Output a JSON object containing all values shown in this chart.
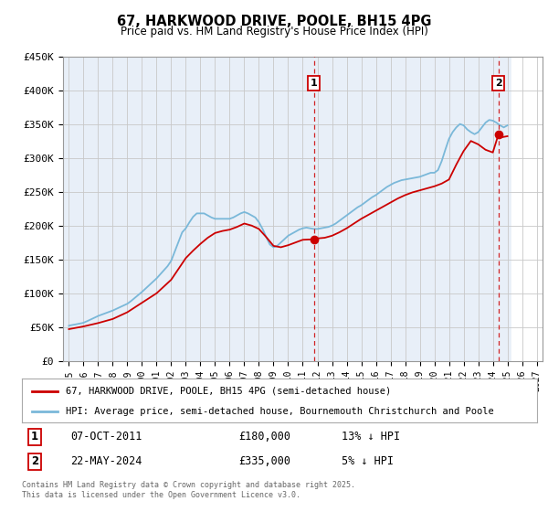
{
  "title": "67, HARKWOOD DRIVE, POOLE, BH15 4PG",
  "subtitle": "Price paid vs. HM Land Registry's House Price Index (HPI)",
  "ylim": [
    0,
    450000
  ],
  "yticks": [
    0,
    50000,
    100000,
    150000,
    200000,
    250000,
    300000,
    350000,
    400000,
    450000
  ],
  "ytick_labels": [
    "£0",
    "£50K",
    "£100K",
    "£150K",
    "£200K",
    "£250K",
    "£300K",
    "£350K",
    "£400K",
    "£450K"
  ],
  "xmin": 1994.6,
  "xmax": 2027.4,
  "hatch_start": 2025.3,
  "sale1_x": 2011.77,
  "sale1_y": 180000,
  "sale2_x": 2024.39,
  "sale2_y": 335000,
  "sale1_date": "07-OCT-2011",
  "sale1_price": "£180,000",
  "sale1_note": "13% ↓ HPI",
  "sale2_date": "22-MAY-2024",
  "sale2_price": "£335,000",
  "sale2_note": "5% ↓ HPI",
  "red_color": "#cc0000",
  "blue_color": "#7ab8d9",
  "background_color": "#e8eff8",
  "hatch_bg_color": "#f0f0f0",
  "grid_color": "#c8c8c8",
  "legend1": "67, HARKWOOD DRIVE, POOLE, BH15 4PG (semi-detached house)",
  "legend2": "HPI: Average price, semi-detached house, Bournemouth Christchurch and Poole",
  "footnote": "Contains HM Land Registry data © Crown copyright and database right 2025.\nThis data is licensed under the Open Government Licence v3.0.",
  "hpi_years": [
    1995.0,
    1995.08,
    1995.17,
    1995.25,
    1995.33,
    1995.42,
    1995.5,
    1995.58,
    1995.67,
    1995.75,
    1995.83,
    1995.92,
    1996.0,
    1996.08,
    1996.17,
    1996.25,
    1996.33,
    1996.42,
    1996.5,
    1996.58,
    1996.67,
    1996.75,
    1996.83,
    1996.92,
    1997.0,
    1997.25,
    1997.5,
    1997.75,
    1998.0,
    1998.25,
    1998.5,
    1998.75,
    1999.0,
    1999.25,
    1999.5,
    1999.75,
    2000.0,
    2000.25,
    2000.5,
    2000.75,
    2001.0,
    2001.25,
    2001.5,
    2001.75,
    2002.0,
    2002.25,
    2002.5,
    2002.75,
    2003.0,
    2003.25,
    2003.5,
    2003.75,
    2004.0,
    2004.25,
    2004.5,
    2004.75,
    2005.0,
    2005.25,
    2005.5,
    2005.75,
    2006.0,
    2006.25,
    2006.5,
    2006.75,
    2007.0,
    2007.25,
    2007.5,
    2007.75,
    2008.0,
    2008.25,
    2008.5,
    2008.75,
    2009.0,
    2009.25,
    2009.5,
    2009.75,
    2010.0,
    2010.25,
    2010.5,
    2010.75,
    2011.0,
    2011.25,
    2011.5,
    2011.75,
    2012.0,
    2012.25,
    2012.5,
    2012.75,
    2013.0,
    2013.25,
    2013.5,
    2013.75,
    2014.0,
    2014.25,
    2014.5,
    2014.75,
    2015.0,
    2015.25,
    2015.5,
    2015.75,
    2016.0,
    2016.25,
    2016.5,
    2016.75,
    2017.0,
    2017.25,
    2017.5,
    2017.75,
    2018.0,
    2018.25,
    2018.5,
    2018.75,
    2019.0,
    2019.25,
    2019.5,
    2019.75,
    2020.0,
    2020.25,
    2020.5,
    2020.75,
    2021.0,
    2021.25,
    2021.5,
    2021.75,
    2022.0,
    2022.25,
    2022.5,
    2022.75,
    2023.0,
    2023.25,
    2023.5,
    2023.75,
    2024.0,
    2024.25,
    2024.5,
    2024.75,
    2025.0
  ],
  "hpi_vals": [
    52000,
    52500,
    52800,
    53200,
    53500,
    53900,
    54200,
    54600,
    54900,
    55300,
    55600,
    56000,
    56500,
    57200,
    57900,
    58800,
    59600,
    60500,
    61300,
    62200,
    63000,
    63900,
    64700,
    65600,
    66500,
    68500,
    70500,
    72500,
    74500,
    77000,
    79500,
    82000,
    84500,
    88500,
    93000,
    97500,
    102000,
    107000,
    112000,
    117000,
    122000,
    128000,
    134000,
    140000,
    148000,
    162000,
    176000,
    190000,
    196000,
    205000,
    213000,
    218000,
    218000,
    218000,
    215000,
    212000,
    210000,
    210000,
    210000,
    210000,
    210000,
    212000,
    215000,
    218000,
    220000,
    218000,
    215000,
    212000,
    205000,
    195000,
    183000,
    172000,
    168000,
    170000,
    175000,
    180000,
    185000,
    188000,
    191000,
    194000,
    196000,
    197000,
    196000,
    195000,
    195000,
    196000,
    197000,
    198000,
    200000,
    203000,
    207000,
    211000,
    215000,
    219000,
    223000,
    227000,
    230000,
    234000,
    238000,
    242000,
    245000,
    249000,
    253000,
    257000,
    260000,
    263000,
    265000,
    267000,
    268000,
    269000,
    270000,
    271000,
    272000,
    274000,
    276000,
    278000,
    278000,
    282000,
    295000,
    312000,
    328000,
    338000,
    345000,
    350000,
    348000,
    342000,
    338000,
    335000,
    338000,
    345000,
    352000,
    356000,
    355000,
    352000,
    348000,
    345000,
    348000
  ],
  "red_years": [
    1995.0,
    1995.5,
    1996.0,
    1996.5,
    1997.0,
    1997.5,
    1998.0,
    1998.5,
    1999.0,
    1999.5,
    2000.0,
    2000.5,
    2001.0,
    2001.5,
    2002.0,
    2002.5,
    2003.0,
    2003.5,
    2004.0,
    2004.5,
    2005.0,
    2005.5,
    2006.0,
    2006.5,
    2007.0,
    2007.5,
    2008.0,
    2008.5,
    2009.0,
    2009.5,
    2010.0,
    2010.5,
    2011.0,
    2011.5,
    2011.77,
    2012.0,
    2012.5,
    2013.0,
    2013.5,
    2014.0,
    2014.5,
    2015.0,
    2015.5,
    2016.0,
    2016.5,
    2017.0,
    2017.5,
    2018.0,
    2018.5,
    2019.0,
    2019.5,
    2020.0,
    2020.5,
    2021.0,
    2021.5,
    2022.0,
    2022.5,
    2023.0,
    2023.5,
    2024.0,
    2024.39,
    2024.5,
    2025.0
  ],
  "red_vals": [
    47000,
    49000,
    51000,
    53500,
    56000,
    59000,
    62000,
    67000,
    72000,
    79000,
    86000,
    93000,
    100000,
    110000,
    120000,
    136000,
    152000,
    163000,
    173000,
    182000,
    189000,
    192000,
    194000,
    198000,
    203000,
    200000,
    195000,
    183000,
    170000,
    168000,
    171000,
    175000,
    179000,
    179500,
    180000,
    181000,
    182000,
    185000,
    190000,
    196000,
    203000,
    210000,
    216000,
    222000,
    228000,
    234000,
    240000,
    245000,
    249000,
    252000,
    255000,
    258000,
    262000,
    268000,
    290000,
    310000,
    325000,
    320000,
    312000,
    308000,
    335000,
    330000,
    332000
  ]
}
